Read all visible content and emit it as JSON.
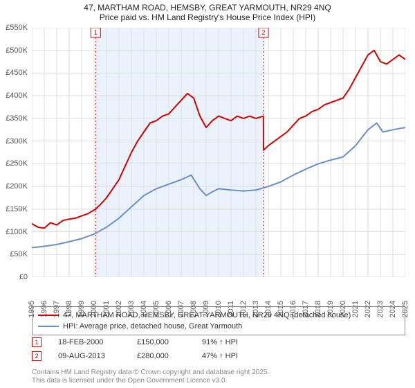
{
  "title_line1": "47, MARTHAM ROAD, HEMSBY, GREAT YARMOUTH, NR29 4NQ",
  "title_line2": "Price paid vs. HM Land Registry's House Price Index (HPI)",
  "chart": {
    "type": "line",
    "x_axis": {
      "min": 1995,
      "max": 2025,
      "tick_step": 1,
      "fontsize": 11
    },
    "y_axis": {
      "min": 0,
      "max": 550000,
      "tick_step": 50000,
      "tick_labels": [
        "£0",
        "£50K",
        "£100K",
        "£150K",
        "£200K",
        "£250K",
        "£300K",
        "£350K",
        "£400K",
        "£450K",
        "£500K",
        "£550K"
      ],
      "fontsize": 11
    },
    "background_color": "#ffffff",
    "grid_color": "#dddddd",
    "shaded_band": {
      "from": 2000.13,
      "to": 2013.61,
      "color": "#eaf2fb"
    },
    "series": [
      {
        "name": "47, MARTHAM ROAD, HEMSBY, GREAT YARMOUTH, NR29 4NQ (detached house)",
        "color": "#d40000",
        "line_width": 2,
        "points": [
          [
            1995.0,
            118
          ],
          [
            1995.5,
            110
          ],
          [
            1996.0,
            108
          ],
          [
            1996.5,
            120
          ],
          [
            1997.0,
            115
          ],
          [
            1997.5,
            125
          ],
          [
            1998.0,
            128
          ],
          [
            1998.5,
            130
          ],
          [
            1999.0,
            135
          ],
          [
            1999.5,
            140
          ],
          [
            2000.13,
            150
          ],
          [
            2000.5,
            160
          ],
          [
            2001.0,
            175
          ],
          [
            2001.5,
            195
          ],
          [
            2002.0,
            215
          ],
          [
            2002.5,
            245
          ],
          [
            2003.0,
            275
          ],
          [
            2003.5,
            300
          ],
          [
            2004.0,
            320
          ],
          [
            2004.5,
            340
          ],
          [
            2005.0,
            345
          ],
          [
            2005.5,
            355
          ],
          [
            2006.0,
            360
          ],
          [
            2006.5,
            375
          ],
          [
            2007.0,
            390
          ],
          [
            2007.5,
            405
          ],
          [
            2008.0,
            395
          ],
          [
            2008.5,
            355
          ],
          [
            2009.0,
            330
          ],
          [
            2009.5,
            345
          ],
          [
            2010.0,
            355
          ],
          [
            2010.5,
            350
          ],
          [
            2011.0,
            345
          ],
          [
            2011.5,
            355
          ],
          [
            2012.0,
            350
          ],
          [
            2012.5,
            355
          ],
          [
            2013.0,
            350
          ],
          [
            2013.6,
            355
          ],
          [
            2013.61,
            280
          ],
          [
            2014.0,
            290
          ],
          [
            2014.5,
            300
          ],
          [
            2015.0,
            310
          ],
          [
            2015.5,
            320
          ],
          [
            2016.0,
            335
          ],
          [
            2016.5,
            350
          ],
          [
            2017.0,
            355
          ],
          [
            2017.5,
            365
          ],
          [
            2018.0,
            370
          ],
          [
            2018.5,
            380
          ],
          [
            2019.0,
            385
          ],
          [
            2019.5,
            390
          ],
          [
            2020.0,
            395
          ],
          [
            2020.5,
            415
          ],
          [
            2021.0,
            440
          ],
          [
            2021.5,
            465
          ],
          [
            2022.0,
            490
          ],
          [
            2022.5,
            500
          ],
          [
            2023.0,
            475
          ],
          [
            2023.5,
            470
          ],
          [
            2024.0,
            480
          ],
          [
            2024.5,
            490
          ],
          [
            2025.0,
            480
          ]
        ]
      },
      {
        "name": "HPI: Average price, detached house, Great Yarmouth",
        "color": "#6a8fc7",
        "line_width": 2,
        "points": [
          [
            1995.0,
            65
          ],
          [
            1996.0,
            68
          ],
          [
            1997.0,
            72
          ],
          [
            1998.0,
            78
          ],
          [
            1999.0,
            85
          ],
          [
            2000.0,
            95
          ],
          [
            2001.0,
            110
          ],
          [
            2002.0,
            130
          ],
          [
            2003.0,
            155
          ],
          [
            2004.0,
            180
          ],
          [
            2005.0,
            195
          ],
          [
            2006.0,
            205
          ],
          [
            2007.0,
            215
          ],
          [
            2007.8,
            225
          ],
          [
            2008.5,
            195
          ],
          [
            2009.0,
            180
          ],
          [
            2009.5,
            188
          ],
          [
            2010.0,
            195
          ],
          [
            2011.0,
            192
          ],
          [
            2012.0,
            190
          ],
          [
            2013.0,
            192
          ],
          [
            2014.0,
            200
          ],
          [
            2015.0,
            210
          ],
          [
            2016.0,
            225
          ],
          [
            2017.0,
            238
          ],
          [
            2018.0,
            250
          ],
          [
            2019.0,
            258
          ],
          [
            2020.0,
            265
          ],
          [
            2021.0,
            290
          ],
          [
            2022.0,
            325
          ],
          [
            2022.7,
            340
          ],
          [
            2023.2,
            320
          ],
          [
            2024.0,
            325
          ],
          [
            2025.0,
            330
          ]
        ]
      }
    ],
    "sale_markers": [
      {
        "n": "1",
        "x": 2000.13,
        "color": "#d40000"
      },
      {
        "n": "2",
        "x": 2013.61,
        "color": "#d40000"
      }
    ]
  },
  "legend": {
    "border_color": "#888888",
    "items": [
      {
        "color": "#d40000",
        "label": "47, MARTHAM ROAD, HEMSBY, GREAT YARMOUTH, NR29 4NQ (detached house)"
      },
      {
        "color": "#6a8fc7",
        "label": "HPI: Average price, detached house, Great Yarmouth"
      }
    ]
  },
  "sales": [
    {
      "n": "1",
      "date": "18-FEB-2000",
      "price": "£150,000",
      "delta": "91% ↑ HPI",
      "marker_color": "#d40000"
    },
    {
      "n": "2",
      "date": "09-AUG-2013",
      "price": "£280,000",
      "delta": "47% ↑ HPI",
      "marker_color": "#d40000"
    }
  ],
  "footer_line1": "Contains HM Land Registry data © Crown copyright and database right 2025.",
  "footer_line2": "This data is licensed under the Open Government Licence v3.0."
}
